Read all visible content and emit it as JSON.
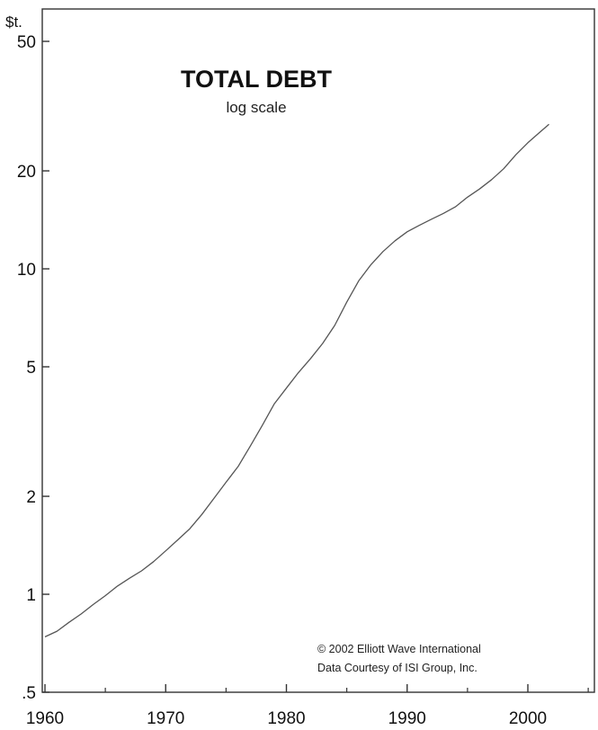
{
  "chart_data": {
    "type": "line",
    "title": "TOTAL DEBT",
    "subtitle": "log scale",
    "ylabel": "$t.",
    "yscale": "log",
    "ylim": [
      0.5,
      60
    ],
    "xlim": [
      1960,
      2006
    ],
    "grid": false,
    "yticks": [
      {
        "value": 50,
        "label": "50"
      },
      {
        "value": 20,
        "label": "20"
      },
      {
        "value": 10,
        "label": "10"
      },
      {
        "value": 5,
        "label": "5"
      },
      {
        "value": 2,
        "label": "2"
      },
      {
        "value": 1,
        "label": "1"
      },
      {
        "value": 0.5,
        "label": ".5"
      }
    ],
    "xticks": [
      {
        "value": 1960,
        "label": "1960"
      },
      {
        "value": 1970,
        "label": "1970"
      },
      {
        "value": 1980,
        "label": "1980"
      },
      {
        "value": 1990,
        "label": "1990"
      },
      {
        "value": 2000,
        "label": "2000"
      }
    ],
    "xminor": [
      1965,
      1975,
      1985,
      1995,
      2005
    ],
    "series": [
      {
        "color": "#555555",
        "points": [
          {
            "x": 1960,
            "y": 0.74
          },
          {
            "x": 1961,
            "y": 0.77
          },
          {
            "x": 1962,
            "y": 0.82
          },
          {
            "x": 1963,
            "y": 0.87
          },
          {
            "x": 1964,
            "y": 0.93
          },
          {
            "x": 1965,
            "y": 0.99
          },
          {
            "x": 1966,
            "y": 1.06
          },
          {
            "x": 1967,
            "y": 1.12
          },
          {
            "x": 1968,
            "y": 1.18
          },
          {
            "x": 1969,
            "y": 1.26
          },
          {
            "x": 1970,
            "y": 1.36
          },
          {
            "x": 1971,
            "y": 1.47
          },
          {
            "x": 1972,
            "y": 1.59
          },
          {
            "x": 1973,
            "y": 1.76
          },
          {
            "x": 1974,
            "y": 1.97
          },
          {
            "x": 1975,
            "y": 2.21
          },
          {
            "x": 1976,
            "y": 2.47
          },
          {
            "x": 1977,
            "y": 2.85
          },
          {
            "x": 1978,
            "y": 3.3
          },
          {
            "x": 1979,
            "y": 3.85
          },
          {
            "x": 1980,
            "y": 4.3
          },
          {
            "x": 1981,
            "y": 4.8
          },
          {
            "x": 1982,
            "y": 5.3
          },
          {
            "x": 1983,
            "y": 5.9
          },
          {
            "x": 1984,
            "y": 6.7
          },
          {
            "x": 1985,
            "y": 7.9
          },
          {
            "x": 1986,
            "y": 9.2
          },
          {
            "x": 1987,
            "y": 10.3
          },
          {
            "x": 1988,
            "y": 11.3
          },
          {
            "x": 1989,
            "y": 12.2
          },
          {
            "x": 1990,
            "y": 13.0
          },
          {
            "x": 1991,
            "y": 13.6
          },
          {
            "x": 1992,
            "y": 14.2
          },
          {
            "x": 1993,
            "y": 14.8
          },
          {
            "x": 1994,
            "y": 15.5
          },
          {
            "x": 1995,
            "y": 16.6
          },
          {
            "x": 1996,
            "y": 17.6
          },
          {
            "x": 1997,
            "y": 18.8
          },
          {
            "x": 1998,
            "y": 20.3
          },
          {
            "x": 1999,
            "y": 22.4
          },
          {
            "x": 2000,
            "y": 24.4
          },
          {
            "x": 2001,
            "y": 26.3
          },
          {
            "x": 2001.75,
            "y": 27.8
          }
        ]
      }
    ],
    "annotations": [
      "© 2002 Elliott Wave International",
      "Data Courtesy of ISI Group, Inc."
    ]
  }
}
